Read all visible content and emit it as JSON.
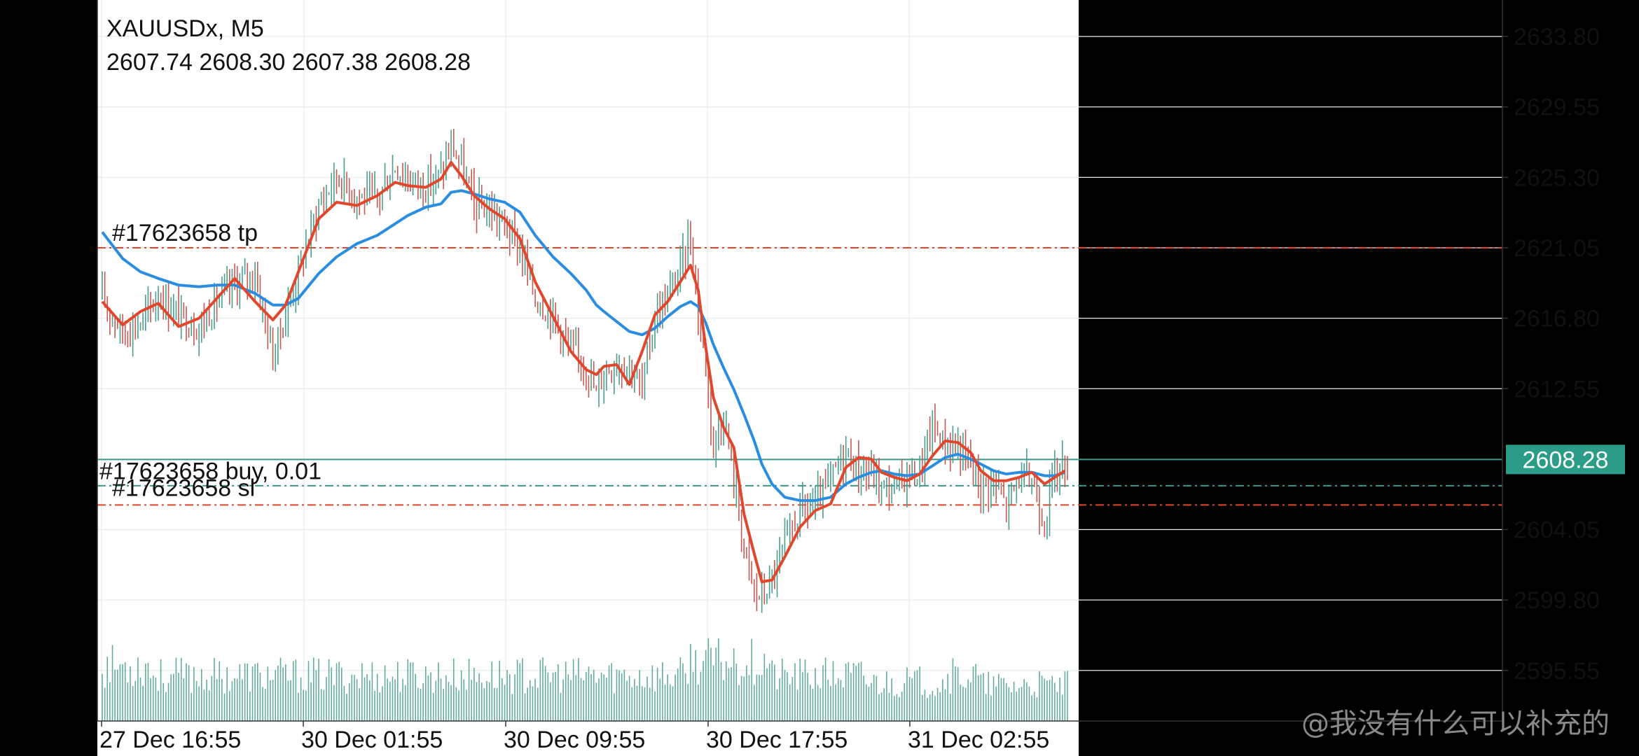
{
  "colors": {
    "bull": "#4a9e8e",
    "bear": "#c45a52",
    "ma_fast": "#e0472d",
    "ma_slow": "#2a8ddf",
    "bid_line": "#3b968b",
    "tp_line": "#e0472d",
    "sl_line": "#e0472d",
    "entry_line": "#3b968b",
    "grid": "#e8eaee",
    "text": "#111111",
    "price_badge": "#2a9c88"
  },
  "chart_data": {
    "type": "candlestick",
    "symbol": "XAUUSDx",
    "timeframe": "M5",
    "ohlc_readout": [
      "2607.74",
      "2608.30",
      "2607.38",
      "2608.28"
    ],
    "ylim": [
      2592.5,
      2636.0
    ],
    "y_ticks": [
      "2633.80",
      "2629.55",
      "2625.30",
      "2621.05",
      "2616.80",
      "2612.55",
      "2604.05",
      "2599.80",
      "2595.55"
    ],
    "x_ticks": [
      "27 Dec 16:55",
      "30 Dec 01:55",
      "30 Dec 09:55",
      "30 Dec 17:55",
      "31 Dec 02:55"
    ],
    "current_price": "2608.28",
    "current_price_value": 2608.28,
    "grid": true,
    "close_path": [
      [
        0,
        2618.0
      ],
      [
        8,
        2616.0
      ],
      [
        15,
        2616.5
      ],
      [
        22,
        2618.2
      ],
      [
        30,
        2617.0
      ],
      [
        38,
        2616.2
      ],
      [
        45,
        2617.8
      ],
      [
        52,
        2618.8
      ],
      [
        60,
        2619.5
      ],
      [
        67,
        2614.5
      ],
      [
        72,
        2617.0
      ],
      [
        77,
        2619.6
      ],
      [
        85,
        2623.6
      ],
      [
        92,
        2625.4
      ],
      [
        100,
        2624.2
      ],
      [
        108,
        2624.0
      ],
      [
        115,
        2626.0
      ],
      [
        120,
        2625.2
      ],
      [
        127,
        2624.8
      ],
      [
        133,
        2625.5
      ],
      [
        137,
        2627.2
      ],
      [
        141,
        2626.0
      ],
      [
        146,
        2623.6
      ],
      [
        152,
        2623.3
      ],
      [
        158,
        2622.4
      ],
      [
        164,
        2621.0
      ],
      [
        170,
        2618.0
      ],
      [
        177,
        2617.0
      ],
      [
        184,
        2614.8
      ],
      [
        190,
        2614.0
      ],
      [
        194,
        2612.2
      ],
      [
        197,
        2613.6
      ],
      [
        202,
        2614.2
      ],
      [
        207,
        2614.0
      ],
      [
        212,
        2612.5
      ],
      [
        217,
        2617.0
      ],
      [
        222,
        2618.0
      ],
      [
        227,
        2619.8
      ],
      [
        231,
        2621.8
      ],
      [
        234,
        2617.0
      ],
      [
        237,
        2614.0
      ],
      [
        240,
        2609.0
      ],
      [
        244,
        2611.0
      ],
      [
        248,
        2607.0
      ],
      [
        252,
        2603.0
      ],
      [
        256,
        2600.2
      ],
      [
        259,
        2600.0
      ],
      [
        263,
        2601.0
      ],
      [
        268,
        2603.0
      ],
      [
        274,
        2605.2
      ],
      [
        280,
        2605.5
      ],
      [
        286,
        2607.0
      ],
      [
        292,
        2608.8
      ],
      [
        297,
        2607.5
      ],
      [
        302,
        2607.5
      ],
      [
        306,
        2606.6
      ],
      [
        311,
        2606.5
      ],
      [
        316,
        2607.4
      ],
      [
        321,
        2607.5
      ],
      [
        326,
        2610.3
      ],
      [
        331,
        2609.2
      ],
      [
        336,
        2609.0
      ],
      [
        341,
        2608.0
      ],
      [
        345,
        2606.7
      ],
      [
        350,
        2606.9
      ],
      [
        355,
        2605.5
      ],
      [
        360,
        2607.2
      ],
      [
        365,
        2607.1
      ],
      [
        370,
        2604.5
      ],
      [
        374,
        2607.6
      ],
      [
        378,
        2608.0
      ]
    ],
    "ma_fast": [
      [
        0,
        2617.8
      ],
      [
        8,
        2616.4
      ],
      [
        15,
        2617.2
      ],
      [
        22,
        2617.7
      ],
      [
        30,
        2616.3
      ],
      [
        38,
        2616.8
      ],
      [
        45,
        2618.0
      ],
      [
        52,
        2619.2
      ],
      [
        60,
        2617.8
      ],
      [
        67,
        2616.7
      ],
      [
        72,
        2617.6
      ],
      [
        77,
        2619.6
      ],
      [
        85,
        2622.8
      ],
      [
        92,
        2623.8
      ],
      [
        100,
        2623.6
      ],
      [
        108,
        2624.2
      ],
      [
        115,
        2625.0
      ],
      [
        120,
        2624.8
      ],
      [
        127,
        2624.7
      ],
      [
        133,
        2625.2
      ],
      [
        137,
        2626.2
      ],
      [
        141,
        2625.4
      ],
      [
        146,
        2624.2
      ],
      [
        152,
        2623.4
      ],
      [
        158,
        2622.8
      ],
      [
        164,
        2621.6
      ],
      [
        170,
        2619.0
      ],
      [
        177,
        2616.9
      ],
      [
        184,
        2614.8
      ],
      [
        190,
        2613.7
      ],
      [
        194,
        2613.4
      ],
      [
        197,
        2613.9
      ],
      [
        202,
        2614.0
      ],
      [
        207,
        2612.8
      ],
      [
        212,
        2614.8
      ],
      [
        217,
        2617.0
      ],
      [
        222,
        2617.8
      ],
      [
        227,
        2619.0
      ],
      [
        231,
        2620.0
      ],
      [
        234,
        2618.5
      ],
      [
        237,
        2615.0
      ],
      [
        240,
        2612.0
      ],
      [
        244,
        2610.2
      ],
      [
        248,
        2609.0
      ],
      [
        252,
        2605.0
      ],
      [
        256,
        2602.6
      ],
      [
        259,
        2600.9
      ],
      [
        263,
        2601.0
      ],
      [
        268,
        2602.4
      ],
      [
        274,
        2604.2
      ],
      [
        280,
        2605.2
      ],
      [
        286,
        2605.6
      ],
      [
        292,
        2607.8
      ],
      [
        297,
        2608.4
      ],
      [
        302,
        2608.3
      ],
      [
        306,
        2607.5
      ],
      [
        311,
        2607.2
      ],
      [
        316,
        2607.0
      ],
      [
        321,
        2607.4
      ],
      [
        326,
        2608.5
      ],
      [
        331,
        2609.4
      ],
      [
        336,
        2609.3
      ],
      [
        341,
        2608.7
      ],
      [
        345,
        2607.6
      ],
      [
        350,
        2607.0
      ],
      [
        355,
        2607.0
      ],
      [
        360,
        2607.2
      ],
      [
        365,
        2607.5
      ],
      [
        370,
        2606.8
      ],
      [
        374,
        2607.2
      ],
      [
        378,
        2607.6
      ]
    ],
    "ma_slow": [
      [
        0,
        2622.0
      ],
      [
        8,
        2620.4
      ],
      [
        15,
        2619.6
      ],
      [
        22,
        2619.2
      ],
      [
        30,
        2618.8
      ],
      [
        38,
        2618.7
      ],
      [
        45,
        2618.8
      ],
      [
        52,
        2618.8
      ],
      [
        60,
        2618.3
      ],
      [
        67,
        2617.6
      ],
      [
        72,
        2617.6
      ],
      [
        77,
        2618.0
      ],
      [
        85,
        2619.5
      ],
      [
        92,
        2620.5
      ],
      [
        100,
        2621.3
      ],
      [
        108,
        2621.8
      ],
      [
        115,
        2622.5
      ],
      [
        120,
        2623.0
      ],
      [
        127,
        2623.5
      ],
      [
        133,
        2623.7
      ],
      [
        137,
        2624.4
      ],
      [
        141,
        2624.5
      ],
      [
        146,
        2624.3
      ],
      [
        152,
        2624.0
      ],
      [
        158,
        2623.8
      ],
      [
        164,
        2623.2
      ],
      [
        170,
        2621.8
      ],
      [
        177,
        2620.5
      ],
      [
        184,
        2619.5
      ],
      [
        190,
        2618.5
      ],
      [
        194,
        2617.6
      ],
      [
        197,
        2617.2
      ],
      [
        202,
        2616.6
      ],
      [
        207,
        2616.0
      ],
      [
        212,
        2615.8
      ],
      [
        217,
        2616.2
      ],
      [
        222,
        2616.9
      ],
      [
        227,
        2617.5
      ],
      [
        231,
        2617.8
      ],
      [
        234,
        2617.5
      ],
      [
        237,
        2616.5
      ],
      [
        240,
        2615.2
      ],
      [
        244,
        2613.8
      ],
      [
        248,
        2612.5
      ],
      [
        252,
        2611.0
      ],
      [
        256,
        2609.4
      ],
      [
        259,
        2608.0
      ],
      [
        263,
        2606.8
      ],
      [
        268,
        2606.0
      ],
      [
        274,
        2605.8
      ],
      [
        280,
        2605.8
      ],
      [
        286,
        2606.0
      ],
      [
        292,
        2606.8
      ],
      [
        297,
        2607.2
      ],
      [
        302,
        2607.5
      ],
      [
        306,
        2607.6
      ],
      [
        311,
        2607.4
      ],
      [
        316,
        2607.3
      ],
      [
        321,
        2607.4
      ],
      [
        326,
        2607.9
      ],
      [
        331,
        2608.4
      ],
      [
        336,
        2608.6
      ],
      [
        341,
        2608.3
      ],
      [
        345,
        2608.0
      ],
      [
        350,
        2607.6
      ],
      [
        355,
        2607.4
      ],
      [
        360,
        2607.5
      ],
      [
        365,
        2607.5
      ],
      [
        370,
        2607.3
      ],
      [
        374,
        2607.3
      ],
      [
        378,
        2607.5
      ]
    ],
    "orders": {
      "tp": {
        "label": "#17623658 tp",
        "price": 2621.05
      },
      "entry": {
        "label": "#17623658 buy, 0.01",
        "price": 2608.3
      },
      "sl": {
        "label": "#17623658 sl",
        "price": 2606.55
      }
    }
  },
  "watermark": "@我没有什么可以补充的"
}
